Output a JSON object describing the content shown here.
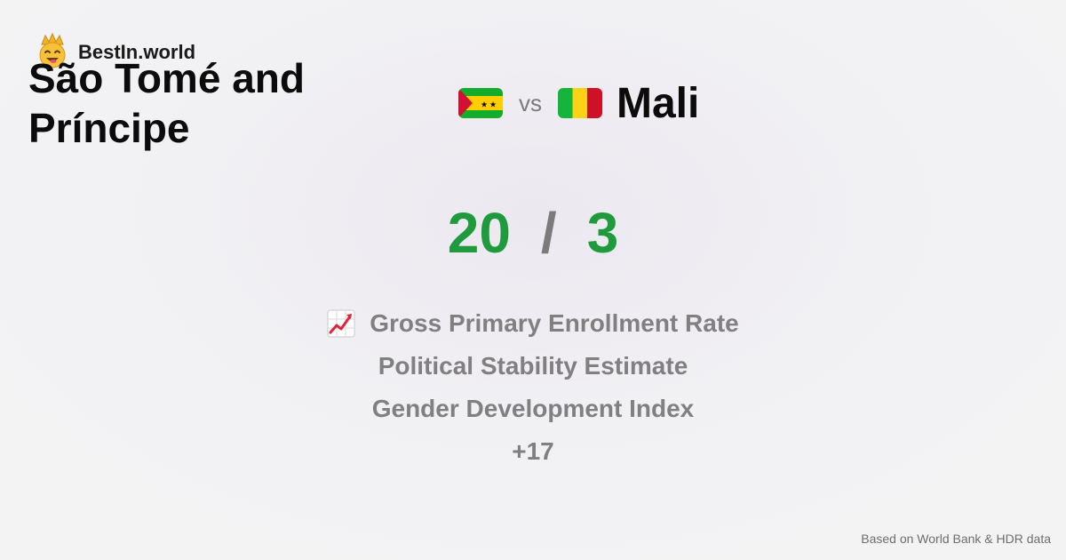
{
  "brand": {
    "name": "BestIn.world",
    "logo_icon": "crown-smiley-icon"
  },
  "comparison": {
    "country_a": {
      "name": "São Tomé and Príncipe",
      "flag_icon": "sao-tome-and-principe-flag-icon",
      "score": "20"
    },
    "vs_label": "vs",
    "country_b": {
      "name": "Mali",
      "flag_icon": "mali-flag-icon",
      "score": "3"
    },
    "score_separator": "/",
    "score_color": "#1f9a3c"
  },
  "metrics": {
    "icon": "chart-increasing-icon",
    "items": [
      "Gross Primary Enrollment Rate",
      "Political Stability Estimate",
      "Gender Development Index"
    ],
    "more_label": "+17"
  },
  "footer": {
    "source": "Based on World Bank & HDR data"
  }
}
